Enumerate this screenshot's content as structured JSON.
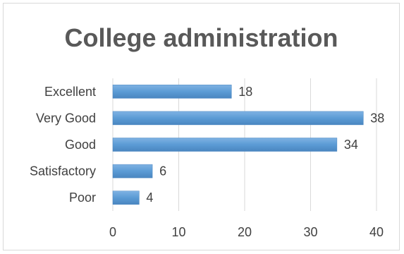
{
  "chart_data": {
    "type": "bar",
    "orientation": "horizontal",
    "title": "College administration",
    "categories": [
      "Excellent",
      "Very Good",
      "Good",
      "Satisfactory",
      "Poor"
    ],
    "values": [
      18,
      38,
      34,
      6,
      4
    ],
    "xlim": [
      0,
      40
    ],
    "x_ticks": [
      0,
      10,
      20,
      30,
      40
    ],
    "grid": true,
    "legend": "none",
    "bar_color": "#5b9bd5",
    "grid_color": "#d9d9d9"
  }
}
